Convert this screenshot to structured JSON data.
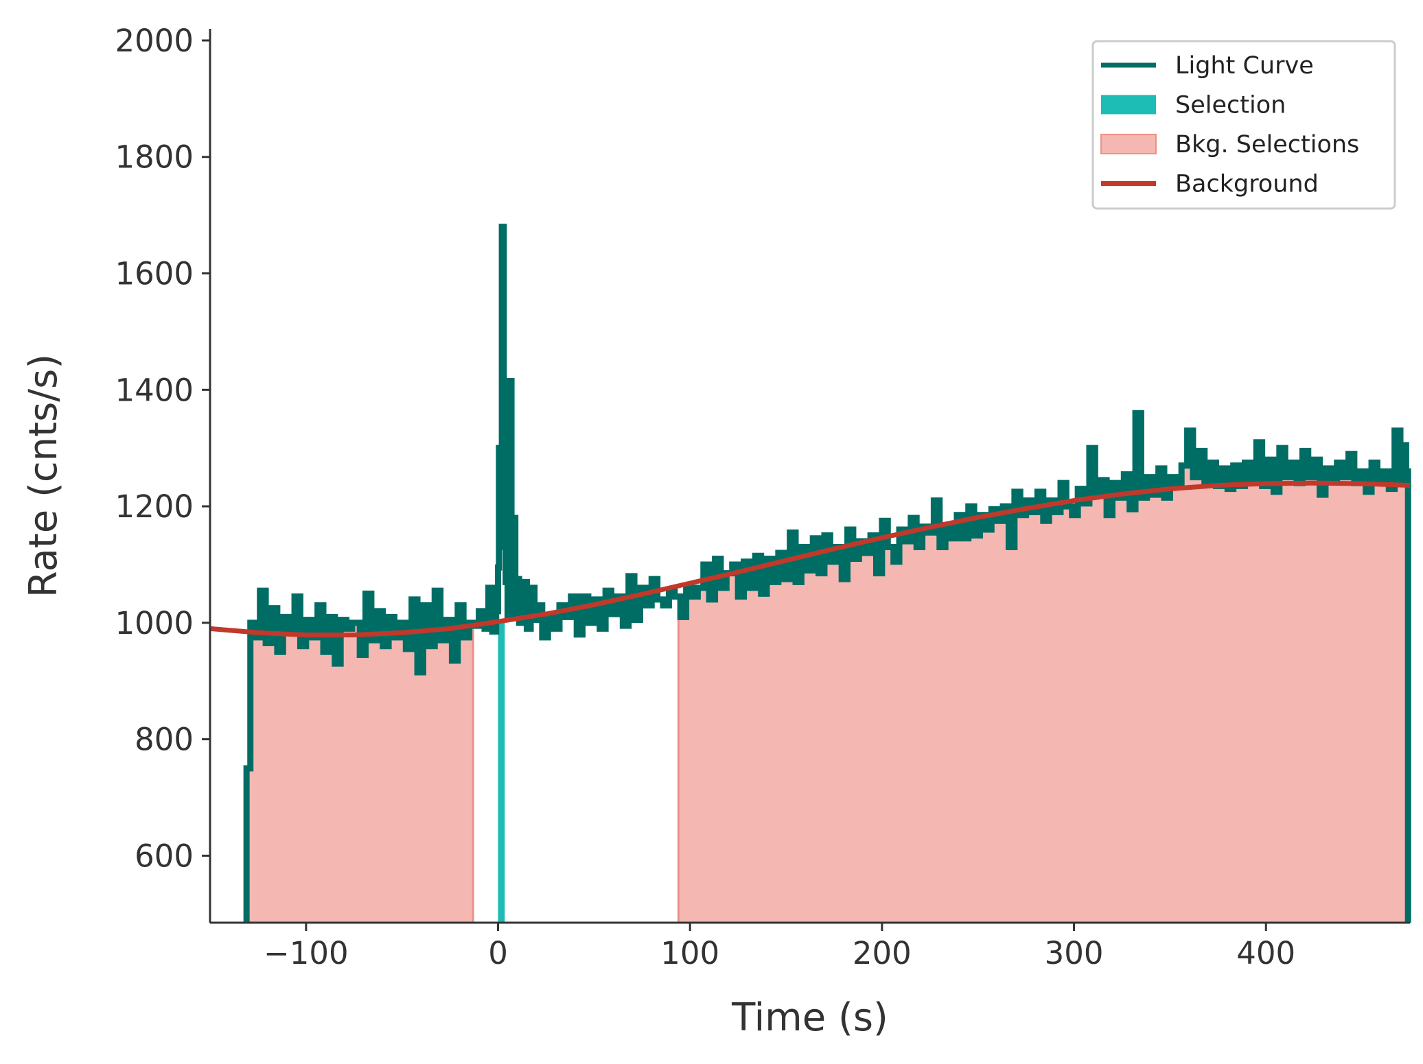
{
  "chart_data": {
    "type": "line",
    "title": "",
    "xlabel": "Time (s)",
    "ylabel": "Rate (cnts/s)",
    "xlim": [
      -150,
      475
    ],
    "ylim": [
      485,
      2020
    ],
    "xticks": [
      -100,
      0,
      100,
      200,
      300,
      400
    ],
    "xtick_labels": [
      "−100",
      "0",
      "100",
      "200",
      "300",
      "400"
    ],
    "yticks": [
      600,
      800,
      1000,
      1200,
      1400,
      1600,
      1800,
      2000
    ],
    "ytick_labels": [
      "600",
      "800",
      "1000",
      "1200",
      "1400",
      "1600",
      "1800",
      "2000"
    ],
    "grid": false,
    "legend_position": "top-right",
    "legend": [
      {
        "label": "Light Curve",
        "kind": "line",
        "color": "#006d65"
      },
      {
        "label": "Selection",
        "kind": "patch",
        "color": "#1dbcb4"
      },
      {
        "label": "Bkg. Selections",
        "kind": "patch",
        "color": "#f5b7b1"
      },
      {
        "label": "Background",
        "kind": "line",
        "color": "#c0392b"
      }
    ],
    "colors": {
      "light_curve": "#006d65",
      "selection": "#1dbcb4",
      "bkg_fill": "#f5b7b1",
      "bkg_edge": "#ef8f86",
      "background": "#c0392b",
      "axis": "#333333"
    },
    "series": [
      {
        "name": "Light Curve",
        "bin_width": 1.024,
        "t_start": -131,
        "t_end": 474,
        "points": [
          [
            -131,
            750
          ],
          [
            -129,
            1000
          ],
          [
            -126,
            975
          ],
          [
            -124,
            1055
          ],
          [
            -121,
            965
          ],
          [
            -118,
            1025
          ],
          [
            -115,
            950
          ],
          [
            -112,
            1010
          ],
          [
            -109,
            985
          ],
          [
            -106,
            1045
          ],
          [
            -103,
            960
          ],
          [
            -100,
            1005
          ],
          [
            -97,
            975
          ],
          [
            -94,
            1030
          ],
          [
            -91,
            950
          ],
          [
            -88,
            1010
          ],
          [
            -85,
            930
          ],
          [
            -82,
            1005
          ],
          [
            -79,
            990
          ],
          [
            -76,
            1000
          ],
          [
            -72,
            945
          ],
          [
            -69,
            1050
          ],
          [
            -66,
            970
          ],
          [
            -63,
            1020
          ],
          [
            -60,
            960
          ],
          [
            -57,
            1010
          ],
          [
            -54,
            975
          ],
          [
            -51,
            1000
          ],
          [
            -48,
            955
          ],
          [
            -45,
            1040
          ],
          [
            -42,
            915
          ],
          [
            -39,
            1030
          ],
          [
            -36,
            960
          ],
          [
            -33,
            1055
          ],
          [
            -30,
            970
          ],
          [
            -27,
            1005
          ],
          [
            -24,
            935
          ],
          [
            -21,
            1030
          ],
          [
            -18,
            975
          ],
          [
            -15,
            1000
          ],
          [
            -12,
            995
          ],
          [
            -10,
            1020
          ],
          [
            -7,
            990
          ],
          [
            -5,
            1060
          ],
          [
            -3,
            985
          ],
          [
            -1,
            1020
          ],
          [
            0,
            1095
          ],
          [
            0.5,
            1300
          ],
          [
            1.5,
            1130
          ],
          [
            2,
            1680
          ],
          [
            3,
            1180
          ],
          [
            4,
            1070
          ],
          [
            5,
            1010
          ],
          [
            6,
            1415
          ],
          [
            7,
            1060
          ],
          [
            8,
            1180
          ],
          [
            9,
            1010
          ],
          [
            10,
            1075
          ],
          [
            11,
            1000
          ],
          [
            13,
            1070
          ],
          [
            15,
            990
          ],
          [
            17,
            1060
          ],
          [
            19,
            1005
          ],
          [
            21,
            1030
          ],
          [
            23,
            975
          ],
          [
            26,
            1010
          ],
          [
            29,
            990
          ],
          [
            32,
            1030
          ],
          [
            35,
            1010
          ],
          [
            38,
            1045
          ],
          [
            41,
            980
          ],
          [
            44,
            1045
          ],
          [
            47,
            1000
          ],
          [
            50,
            1040
          ],
          [
            53,
            990
          ],
          [
            56,
            1055
          ],
          [
            59,
            1015
          ],
          [
            62,
            1045
          ],
          [
            65,
            995
          ],
          [
            68,
            1080
          ],
          [
            71,
            1005
          ],
          [
            74,
            1060
          ],
          [
            77,
            1030
          ],
          [
            80,
            1075
          ],
          [
            83,
            1040
          ],
          [
            86,
            1030
          ],
          [
            89,
            1055
          ],
          [
            92,
            1045
          ],
          [
            95,
            1010
          ],
          [
            98,
            1060
          ],
          [
            101,
            1045
          ],
          [
            104,
            1060
          ],
          [
            107,
            1100
          ],
          [
            110,
            1040
          ],
          [
            113,
            1110
          ],
          [
            116,
            1060
          ],
          [
            119,
            1085
          ],
          [
            122,
            1100
          ],
          [
            125,
            1045
          ],
          [
            128,
            1105
          ],
          [
            131,
            1060
          ],
          [
            134,
            1115
          ],
          [
            137,
            1050
          ],
          [
            140,
            1110
          ],
          [
            143,
            1070
          ],
          [
            146,
            1120
          ],
          [
            149,
            1075
          ],
          [
            152,
            1155
          ],
          [
            155,
            1070
          ],
          [
            158,
            1130
          ],
          [
            161,
            1090
          ],
          [
            164,
            1145
          ],
          [
            167,
            1085
          ],
          [
            170,
            1150
          ],
          [
            173,
            1105
          ],
          [
            176,
            1130
          ],
          [
            179,
            1075
          ],
          [
            182,
            1160
          ],
          [
            185,
            1110
          ],
          [
            188,
            1140
          ],
          [
            191,
            1120
          ],
          [
            194,
            1150
          ],
          [
            197,
            1085
          ],
          [
            200,
            1175
          ],
          [
            203,
            1130
          ],
          [
            206,
            1105
          ],
          [
            209,
            1160
          ],
          [
            212,
            1140
          ],
          [
            215,
            1180
          ],
          [
            218,
            1130
          ],
          [
            221,
            1165
          ],
          [
            224,
            1155
          ],
          [
            227,
            1210
          ],
          [
            230,
            1130
          ],
          [
            233,
            1165
          ],
          [
            236,
            1145
          ],
          [
            239,
            1185
          ],
          [
            242,
            1145
          ],
          [
            245,
            1200
          ],
          [
            248,
            1150
          ],
          [
            251,
            1185
          ],
          [
            254,
            1160
          ],
          [
            257,
            1195
          ],
          [
            260,
            1175
          ],
          [
            263,
            1200
          ],
          [
            266,
            1130
          ],
          [
            269,
            1225
          ],
          [
            272,
            1185
          ],
          [
            275,
            1210
          ],
          [
            278,
            1190
          ],
          [
            281,
            1225
          ],
          [
            284,
            1175
          ],
          [
            287,
            1210
          ],
          [
            290,
            1190
          ],
          [
            293,
            1240
          ],
          [
            296,
            1200
          ],
          [
            299,
            1185
          ],
          [
            302,
            1230
          ],
          [
            305,
            1205
          ],
          [
            308,
            1300
          ],
          [
            311,
            1220
          ],
          [
            314,
            1245
          ],
          [
            317,
            1185
          ],
          [
            320,
            1240
          ],
          [
            323,
            1215
          ],
          [
            326,
            1255
          ],
          [
            329,
            1195
          ],
          [
            332,
            1360
          ],
          [
            335,
            1215
          ],
          [
            338,
            1250
          ],
          [
            341,
            1220
          ],
          [
            344,
            1265
          ],
          [
            347,
            1215
          ],
          [
            350,
            1250
          ],
          [
            353,
            1235
          ],
          [
            356,
            1270
          ],
          [
            359,
            1330
          ],
          [
            362,
            1250
          ],
          [
            365,
            1295
          ],
          [
            368,
            1240
          ],
          [
            371,
            1275
          ],
          [
            374,
            1235
          ],
          [
            377,
            1265
          ],
          [
            380,
            1230
          ],
          [
            383,
            1270
          ],
          [
            386,
            1235
          ],
          [
            389,
            1275
          ],
          [
            392,
            1240
          ],
          [
            395,
            1310
          ],
          [
            398,
            1235
          ],
          [
            401,
            1280
          ],
          [
            404,
            1225
          ],
          [
            407,
            1300
          ],
          [
            410,
            1250
          ],
          [
            413,
            1275
          ],
          [
            416,
            1240
          ],
          [
            419,
            1295
          ],
          [
            422,
            1250
          ],
          [
            425,
            1280
          ],
          [
            428,
            1220
          ],
          [
            431,
            1265
          ],
          [
            434,
            1245
          ],
          [
            437,
            1275
          ],
          [
            440,
            1250
          ],
          [
            443,
            1290
          ],
          [
            446,
            1240
          ],
          [
            449,
            1260
          ],
          [
            452,
            1225
          ],
          [
            455,
            1275
          ],
          [
            458,
            1245
          ],
          [
            461,
            1260
          ],
          [
            464,
            1230
          ],
          [
            467,
            1330
          ],
          [
            470,
            1240
          ],
          [
            472,
            1305
          ],
          [
            473,
            1260
          ],
          [
            474,
            510
          ]
        ]
      },
      {
        "name": "Background",
        "x": [
          -150,
          -125,
          -100,
          -75,
          -50,
          -25,
          0,
          25,
          50,
          75,
          100,
          125,
          150,
          175,
          200,
          225,
          250,
          275,
          300,
          325,
          350,
          375,
          400,
          425,
          450,
          475
        ],
        "values": [
          990,
          983,
          979,
          979,
          983,
          990,
          1002,
          1015,
          1031,
          1049,
          1068,
          1087,
          1107,
          1127,
          1146,
          1164,
          1181,
          1196,
          1210,
          1221,
          1230,
          1236,
          1239,
          1240,
          1239,
          1236
        ]
      }
    ],
    "selection": {
      "range": [
        0,
        3.5
      ]
    },
    "bkg_selections": [
      {
        "range": [
          -130,
          -13
        ]
      },
      {
        "range": [
          94,
          474
        ]
      }
    ]
  }
}
